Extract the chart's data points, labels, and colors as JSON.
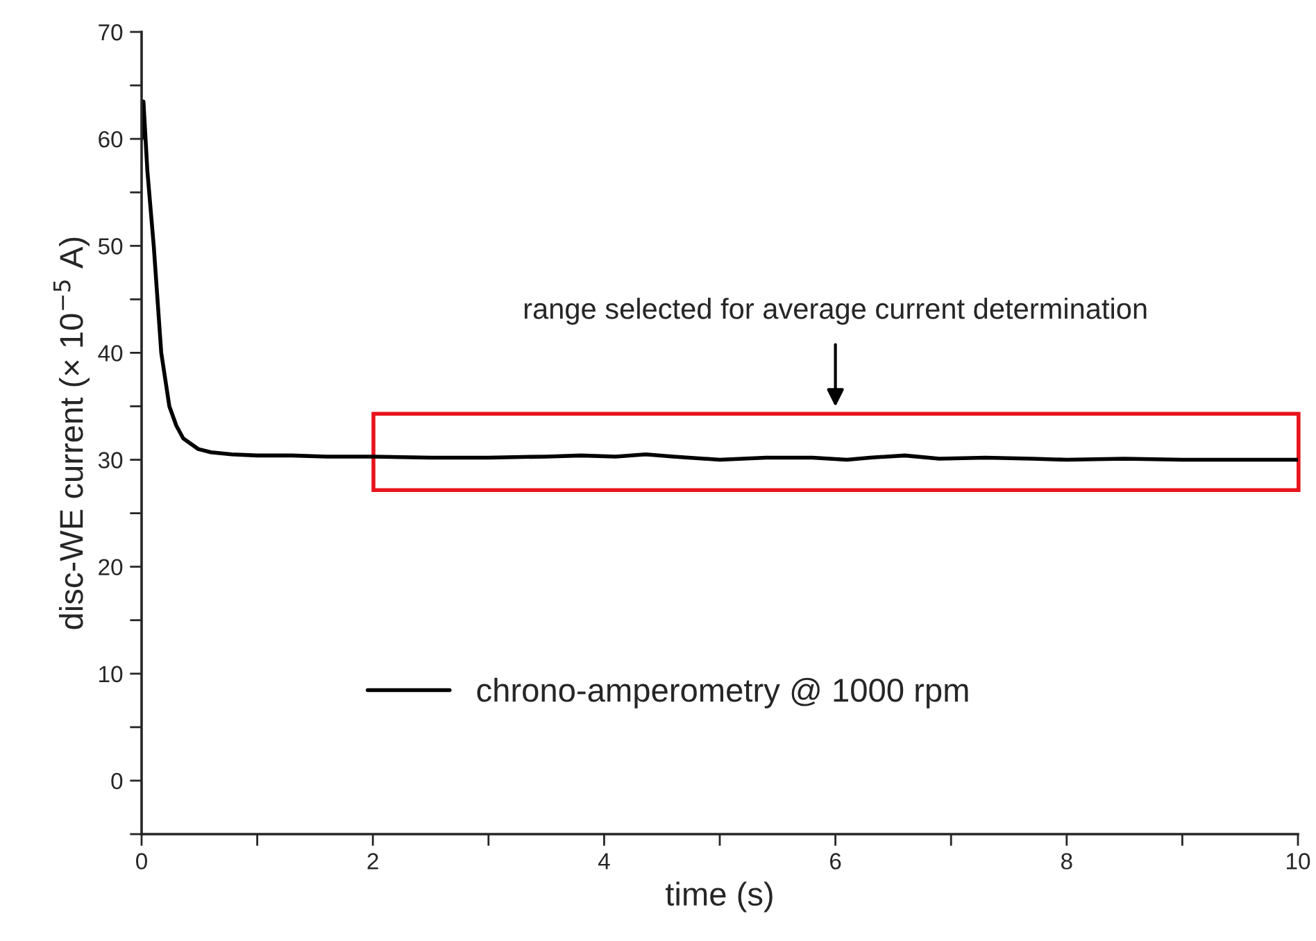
{
  "chart_data": {
    "type": "line",
    "xlabel": "time (s)",
    "ylabel": "disc-WE current (× 10$^{−5}$ A)",
    "xlim": [
      0,
      10
    ],
    "ylim": [
      -5,
      70
    ],
    "xticks": [
      0,
      {
        "value": 1,
        "label": null
      },
      2,
      {
        "value": 3,
        "label": null
      },
      4,
      {
        "value": 5,
        "label": null
      },
      6,
      {
        "value": 7,
        "label": null
      },
      8,
      {
        "value": 9,
        "label": null
      },
      10
    ],
    "yticks": [
      {
        "value": -5,
        "label": null
      },
      0,
      {
        "value": 5,
        "label": null
      },
      10,
      {
        "value": 15,
        "label": null
      },
      20,
      {
        "value": 25,
        "label": null
      },
      30,
      {
        "value": 35,
        "label": null
      },
      40,
      {
        "value": 45,
        "label": null
      },
      50,
      {
        "value": 55,
        "label": null
      },
      60,
      {
        "value": 65,
        "label": null
      },
      70
    ],
    "grid": false,
    "legend": "lower left",
    "series": [
      {
        "name": "chrono-amperometry @ 1000 rpm",
        "color": "#000000",
        "x": [
          0,
          0.016,
          0.05,
          0.105,
          0.17,
          0.24,
          0.3,
          0.36,
          0.49,
          0.6,
          0.78,
          1.0,
          1.3,
          1.6,
          2.0,
          2.5,
          3.0,
          3.5,
          3.8,
          4.1,
          4.36,
          4.6,
          5.0,
          5.4,
          5.8,
          6.1,
          6.3,
          6.6,
          6.9,
          7.3,
          7.7,
          8.0,
          8.5,
          9.0,
          9.5,
          10.0
        ],
        "values": [
          60,
          63.5,
          57,
          50,
          40,
          35,
          33.2,
          32,
          31,
          30.7,
          30.5,
          30.4,
          30.4,
          30.3,
          30.3,
          30.2,
          30.2,
          30.3,
          30.4,
          30.3,
          30.5,
          30.3,
          30.0,
          30.2,
          30.2,
          30.0,
          30.2,
          30.4,
          30.1,
          30.2,
          30.1,
          30.0,
          30.1,
          30.0,
          30.0,
          30.0
        ]
      }
    ],
    "annotations": [
      "range selected for average current determination"
    ]
  }
}
